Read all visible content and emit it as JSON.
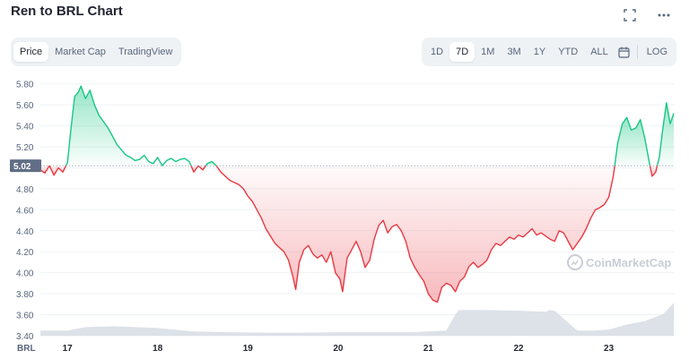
{
  "header": {
    "title": "Ren to BRL Chart"
  },
  "icons": {
    "fullscreen": "fullscreen-icon",
    "more": "more-icon",
    "calendar": "calendar-icon"
  },
  "tabs_left": [
    {
      "label": "Price",
      "active": true
    },
    {
      "label": "Market Cap",
      "active": false
    },
    {
      "label": "TradingView",
      "active": false
    }
  ],
  "tabs_right": [
    {
      "label": "1D",
      "active": false
    },
    {
      "label": "7D",
      "active": true
    },
    {
      "label": "1M",
      "active": false
    },
    {
      "label": "3M",
      "active": false
    },
    {
      "label": "1Y",
      "active": false
    },
    {
      "label": "YTD",
      "active": false
    },
    {
      "label": "ALL",
      "active": false
    }
  ],
  "log_label": "LOG",
  "watermark": "CoinMarketCap",
  "colors": {
    "up": "#16c784",
    "down": "#ea3943",
    "volume": "#dde1e8",
    "current_badge": "#616e85"
  },
  "chart_data": {
    "type": "line",
    "title": "Ren to BRL Chart",
    "currency_label": "BRL",
    "ylim": [
      3.4,
      5.9
    ],
    "xlim": [
      16.7,
      23.73
    ],
    "y_ticks": [
      5.8,
      5.6,
      5.4,
      5.2,
      5.0,
      4.8,
      4.6,
      4.4,
      4.2,
      4.0,
      3.8,
      3.6,
      3.4
    ],
    "y_tick_labels": [
      "5.80",
      "5.60",
      "5.40",
      "5.20",
      "5.00",
      "4.80",
      "4.60",
      "4.40",
      "4.20",
      "4.00",
      "3.80",
      "3.60",
      "3.40"
    ],
    "x_ticks": [
      17,
      18,
      19,
      20,
      21,
      22,
      23
    ],
    "x_tick_labels": [
      "17",
      "18",
      "19",
      "20",
      "21",
      "22",
      "23"
    ],
    "reference_price": 5.02,
    "reference_label": "5.02",
    "grid": true,
    "series": [
      {
        "x": [
          16.7,
          16.75,
          16.8,
          16.85,
          16.9,
          16.95,
          17.0,
          17.04,
          17.08,
          17.12,
          17.15,
          17.2,
          17.25,
          17.3,
          17.35,
          17.4,
          17.45,
          17.5,
          17.55,
          17.6,
          17.65,
          17.7,
          17.75,
          17.8,
          17.85,
          17.9,
          17.95,
          18.0,
          18.05,
          18.1,
          18.15,
          18.2,
          18.25,
          18.3,
          18.35,
          18.4,
          18.45,
          18.5,
          18.55,
          18.6,
          18.65,
          18.7,
          18.75,
          18.8,
          18.85,
          18.9,
          18.95,
          19.0,
          19.05,
          19.1,
          19.15,
          19.2,
          19.25,
          19.3,
          19.35,
          19.4,
          19.45,
          19.5,
          19.53,
          19.57,
          19.62,
          19.67,
          19.72,
          19.77,
          19.82,
          19.87,
          19.92,
          19.97,
          20.02,
          20.05,
          20.1,
          20.15,
          20.2,
          20.25,
          20.3,
          20.35,
          20.4,
          20.45,
          20.5,
          20.55,
          20.6,
          20.65,
          20.7,
          20.75,
          20.8,
          20.85,
          20.9,
          20.95,
          21.0,
          21.05,
          21.1,
          21.15,
          21.2,
          21.25,
          21.3,
          21.35,
          21.4,
          21.45,
          21.5,
          21.55,
          21.6,
          21.65,
          21.7,
          21.75,
          21.8,
          21.85,
          21.9,
          21.95,
          22.0,
          22.05,
          22.1,
          22.15,
          22.2,
          22.25,
          22.3,
          22.35,
          22.4,
          22.45,
          22.5,
          22.55,
          22.6,
          22.65,
          22.7,
          22.75,
          22.8,
          22.85,
          22.9,
          22.95,
          23.0,
          23.05,
          23.1,
          23.15,
          23.2,
          23.25,
          23.3,
          23.35,
          23.4,
          23.45,
          23.48,
          23.52,
          23.56,
          23.6,
          23.64,
          23.68,
          23.72
        ],
        "values": [
          4.98,
          4.95,
          5.02,
          4.93,
          5.0,
          4.96,
          5.05,
          5.38,
          5.68,
          5.72,
          5.78,
          5.66,
          5.74,
          5.6,
          5.5,
          5.44,
          5.38,
          5.3,
          5.22,
          5.17,
          5.12,
          5.1,
          5.07,
          5.08,
          5.12,
          5.06,
          5.04,
          5.1,
          5.02,
          5.07,
          5.09,
          5.06,
          5.08,
          5.09,
          5.06,
          4.96,
          5.02,
          4.98,
          5.04,
          5.06,
          5.02,
          4.96,
          4.92,
          4.88,
          4.86,
          4.84,
          4.8,
          4.73,
          4.68,
          4.6,
          4.52,
          4.42,
          4.35,
          4.28,
          4.24,
          4.2,
          4.12,
          3.96,
          3.84,
          4.1,
          4.22,
          4.26,
          4.18,
          4.14,
          4.17,
          4.1,
          4.2,
          4.0,
          3.94,
          3.82,
          4.14,
          4.22,
          4.3,
          4.2,
          4.05,
          4.12,
          4.32,
          4.45,
          4.5,
          4.38,
          4.44,
          4.46,
          4.4,
          4.3,
          4.14,
          4.05,
          3.98,
          3.92,
          3.8,
          3.74,
          3.72,
          3.86,
          3.9,
          3.88,
          3.82,
          3.92,
          3.96,
          4.06,
          4.1,
          4.05,
          4.08,
          4.12,
          4.22,
          4.28,
          4.26,
          4.3,
          4.34,
          4.32,
          4.36,
          4.34,
          4.38,
          4.42,
          4.36,
          4.38,
          4.35,
          4.32,
          4.3,
          4.4,
          4.38,
          4.3,
          4.22,
          4.28,
          4.34,
          4.42,
          4.52,
          4.6,
          4.62,
          4.65,
          4.72,
          4.92,
          5.24,
          5.42,
          5.48,
          5.36,
          5.38,
          5.46,
          5.28,
          5.05,
          4.92,
          4.96,
          5.1,
          5.38,
          5.62,
          5.42,
          5.52
        ]
      }
    ],
    "volume": {
      "x": [
        16.7,
        17.0,
        17.2,
        17.5,
        18.0,
        18.4,
        18.8,
        19.2,
        19.6,
        20.0,
        20.4,
        20.8,
        21.2,
        21.3,
        21.34,
        21.6,
        22.0,
        22.3,
        22.35,
        22.4,
        22.65,
        22.85,
        23.0,
        23.2,
        23.4,
        23.6,
        23.72
      ],
      "values": [
        0.12,
        0.12,
        0.2,
        0.22,
        0.18,
        0.1,
        0.08,
        0.07,
        0.07,
        0.08,
        0.08,
        0.08,
        0.12,
        0.5,
        0.6,
        0.6,
        0.58,
        0.56,
        0.6,
        0.58,
        0.12,
        0.12,
        0.14,
        0.26,
        0.34,
        0.5,
        0.76
      ]
    }
  }
}
